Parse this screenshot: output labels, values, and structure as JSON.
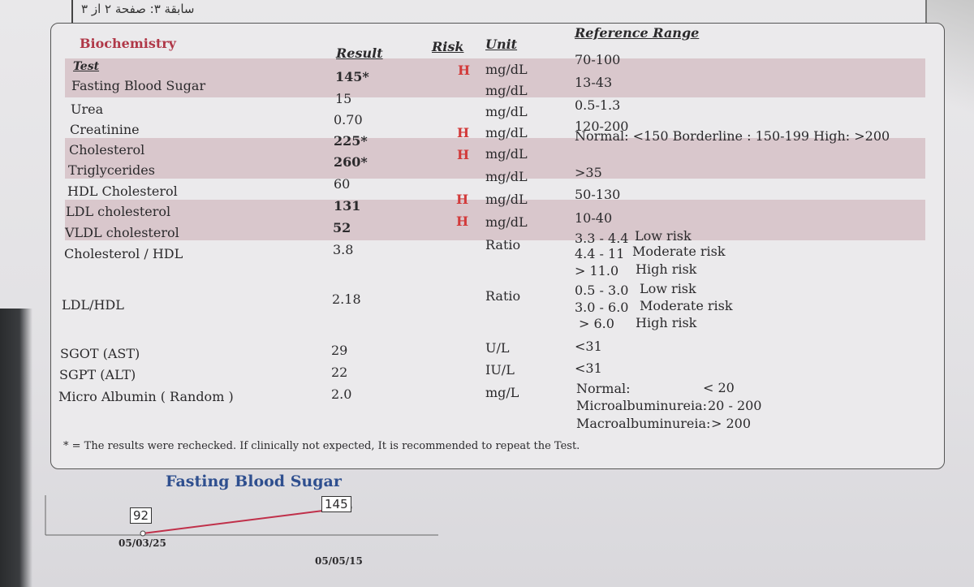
{
  "header": {
    "arabic_text": "سابقة ٣: صفحة ٢ از ٣"
  },
  "section": {
    "title": "Biochemistry",
    "columns": {
      "test": "Test",
      "result": "Result",
      "risk": "Risk",
      "unit": "Unit",
      "reference": "Reference Range"
    }
  },
  "rows": [
    {
      "test": "Fasting Blood Sugar",
      "result": "145*",
      "risk": "H",
      "unit": "mg/dL",
      "ref": "70-100"
    },
    {
      "test": "Urea",
      "result": "15",
      "risk": "",
      "unit": "mg/dL",
      "ref": "13-43"
    },
    {
      "test": "Creatinine",
      "result": "0.70",
      "risk": "",
      "unit": "mg/dL",
      "ref": "0.5-1.3"
    },
    {
      "test": "Cholesterol",
      "result": "225*",
      "risk": "H",
      "unit": "mg/dL",
      "ref": "120-200"
    },
    {
      "test": "Triglycerides",
      "result": "260*",
      "risk": "H",
      "unit": "mg/dL",
      "ref": "Normal: <150 Borderline : 150-199 High: >200"
    },
    {
      "test": "HDL Cholesterol",
      "result": "60",
      "risk": "",
      "unit": "mg/dL",
      "ref": ">35"
    },
    {
      "test": "LDL cholesterol",
      "result": "131",
      "risk": "H",
      "unit": "mg/dL",
      "ref": "50-130"
    },
    {
      "test": "VLDL cholesterol",
      "result": "52",
      "risk": "H",
      "unit": "mg/dL",
      "ref": "10-40"
    }
  ],
  "chol_hdl": {
    "test": "Cholesterol / HDL",
    "result": "3.8",
    "unit": "Ratio",
    "ref_lines": [
      {
        "range": "3.3 - 4.4",
        "label": "Low risk"
      },
      {
        "range": "4.4 - 11",
        "label": "Moderate risk"
      },
      {
        "range": "> 11.0",
        "label": "High risk"
      }
    ]
  },
  "ldl_hdl": {
    "test": "LDL/HDL",
    "result": "2.18",
    "unit": "Ratio",
    "ref_lines": [
      {
        "range": "0.5 - 3.0",
        "label": "Low risk"
      },
      {
        "range": "3.0 - 6.0",
        "label": "Moderate risk"
      },
      {
        "range": "> 6.0",
        "label": "High risk"
      }
    ]
  },
  "enzymes": [
    {
      "test": "SGOT (AST)",
      "result": "29",
      "unit": "U/L",
      "ref": "<31"
    },
    {
      "test": "SGPT (ALT)",
      "result": "22",
      "unit": "IU/L",
      "ref": "<31"
    }
  ],
  "microalbumin": {
    "test": "Micro Albumin ( Random )",
    "result": "2.0",
    "unit": "mg/L",
    "ref_lines": [
      {
        "label": "Normal:",
        "range": "< 20"
      },
      {
        "label": "Microalbuminureia:",
        "range": "20 - 200"
      },
      {
        "label": "Macroalbuminureia:",
        "range": "> 200"
      }
    ]
  },
  "footnote": "* = The results were rechecked. If clinically not expected, It is recommended to repeat the Test.",
  "chart_data": {
    "type": "line",
    "title": "Fasting Blood Sugar",
    "x": [
      "05/03/25",
      "05/05/15"
    ],
    "values": [
      92,
      145
    ],
    "color": "#c0304a"
  }
}
